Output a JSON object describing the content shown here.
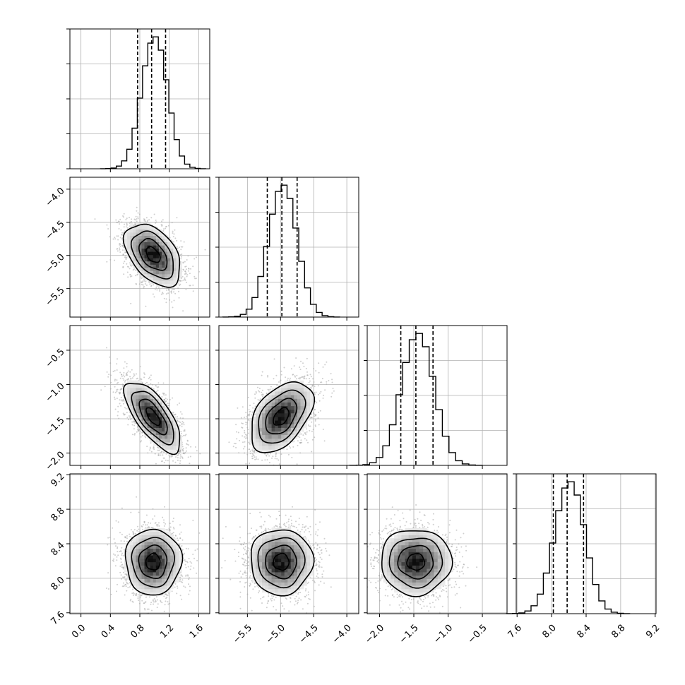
{
  "chart_data": {
    "type": "corner",
    "grid": true,
    "parameters": [
      {
        "index": 0,
        "mean": 0.98,
        "std": 0.17,
        "range": [
          -0.15,
          1.75
        ],
        "ticks": [
          0.0,
          0.4,
          0.8,
          1.2,
          1.6
        ],
        "tick_labels": [
          "0.0",
          "0.4",
          "0.8",
          "1.2",
          "1.6"
        ],
        "quantiles": [
          0.77,
          0.96,
          1.15
        ]
      },
      {
        "index": 1,
        "mean": -4.99,
        "std": 0.21,
        "range": [
          -5.93,
          -3.82
        ],
        "ticks": [
          -5.5,
          -5.0,
          -4.5,
          -4.0
        ],
        "tick_labels": [
          "−5.5",
          "−5.0",
          "−4.5",
          "−4.0"
        ],
        "quantiles": [
          -5.2,
          -4.98,
          -4.75
        ]
      },
      {
        "index": 2,
        "mean": -1.47,
        "std": 0.23,
        "range": [
          -2.18,
          -0.14
        ],
        "ticks": [
          -2.0,
          -1.5,
          -1.0,
          -0.5
        ],
        "tick_labels": [
          "−2.0",
          "−1.5",
          "−1.0",
          "−0.5"
        ],
        "quantiles": [
          -1.69,
          -1.47,
          -1.22
        ]
      },
      {
        "index": 3,
        "mean": 8.19,
        "std": 0.17,
        "range": [
          7.59,
          9.21
        ],
        "ticks": [
          7.6,
          8.0,
          8.4,
          8.8,
          9.2
        ],
        "tick_labels": [
          "7.6",
          "8.0",
          "8.4",
          "8.8",
          "9.2"
        ],
        "quantiles": [
          8.02,
          8.18,
          8.37
        ]
      }
    ],
    "correlations": [
      {
        "params": [
          0,
          1
        ],
        "rho": -0.45
      },
      {
        "params": [
          0,
          2
        ],
        "rho": -0.7
      },
      {
        "params": [
          1,
          2
        ],
        "rho": 0.45
      },
      {
        "params": [
          0,
          3
        ],
        "rho": 0.0
      },
      {
        "params": [
          1,
          3
        ],
        "rho": 0.0
      },
      {
        "params": [
          2,
          3
        ],
        "rho": 0.0
      }
    ],
    "histogram_bins": 20,
    "contour_levels_sigma": [
      0.5,
      1.0,
      1.5,
      2.0
    ],
    "colors": {
      "density_dark": "#000000",
      "points": "#a8a8a8",
      "lines": "#000000"
    }
  }
}
